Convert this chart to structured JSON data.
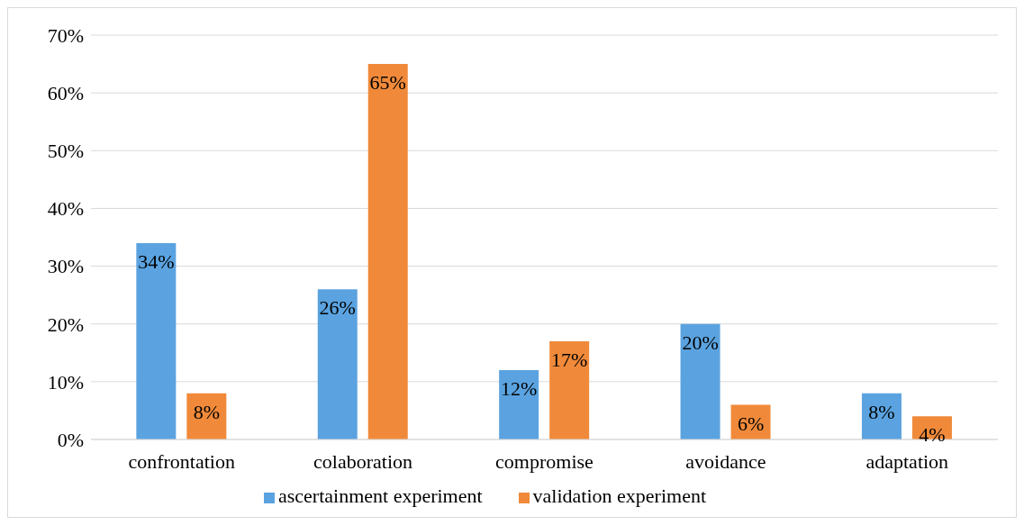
{
  "chart_data": {
    "type": "bar",
    "categories": [
      "confrontation",
      "colaboration",
      "compromise",
      "avoidance",
      "adaptation"
    ],
    "series": [
      {
        "name": "ascertainment experiment",
        "color": "#5ba3e0",
        "values": [
          34,
          26,
          12,
          20,
          8
        ],
        "value_labels": [
          "34%",
          "26%",
          "12%",
          "20%",
          "8%"
        ]
      },
      {
        "name": "validation experiment",
        "color": "#f08a3a",
        "values": [
          8,
          65,
          17,
          6,
          4
        ],
        "value_labels": [
          "8%",
          "65%",
          "17%",
          "6%",
          "4%"
        ]
      }
    ],
    "ylim": [
      0,
      70
    ],
    "yticks": [
      {
        "value": 0,
        "label": "0%"
      },
      {
        "value": 10,
        "label": "10%"
      },
      {
        "value": 20,
        "label": "20%"
      },
      {
        "value": 30,
        "label": "30%"
      },
      {
        "value": 40,
        "label": "40%"
      },
      {
        "value": 50,
        "label": "50%"
      },
      {
        "value": 60,
        "label": "60%"
      },
      {
        "value": 70,
        "label": "70%"
      }
    ],
    "grid": "y",
    "legend": "bottom"
  }
}
